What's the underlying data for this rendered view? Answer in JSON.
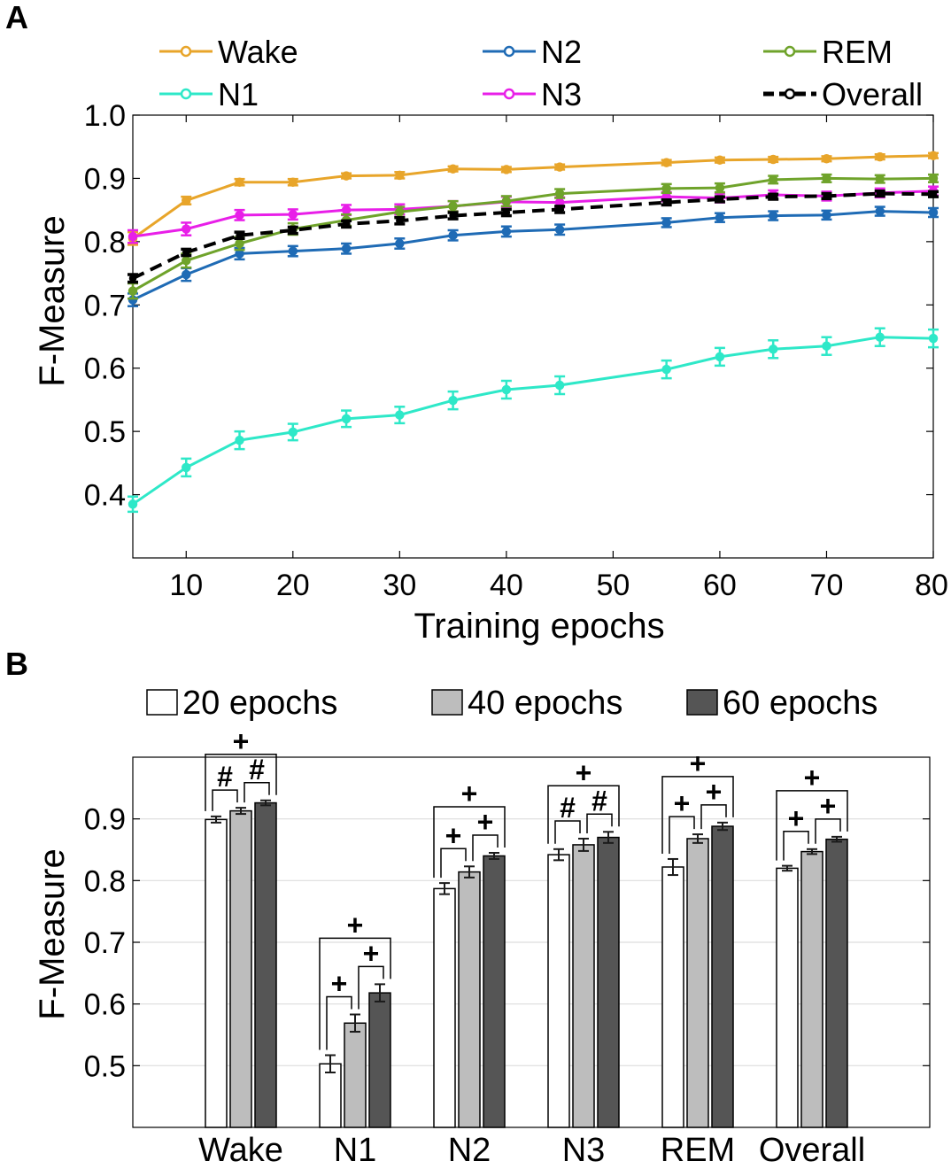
{
  "panel_labels": [
    "A",
    "B"
  ],
  "chart_data": [
    {
      "type": "line",
      "panel": "A",
      "title": "",
      "xlabel": "Training epochs",
      "ylabel": "F-Measure",
      "xlim": [
        5,
        80
      ],
      "ylim": [
        0.3,
        1.0
      ],
      "xticks": [
        10,
        20,
        30,
        40,
        50,
        60,
        70,
        80
      ],
      "yticks": [
        0.4,
        0.5,
        0.6,
        0.7,
        0.8,
        0.9,
        1.0
      ],
      "ytick_labels": [
        "0.4",
        "0.5",
        "0.6",
        "0.7",
        "0.8",
        "0.9",
        "1.0"
      ],
      "grid": false,
      "legend_position": "top",
      "x": [
        5,
        10,
        15,
        20,
        25,
        30,
        35,
        40,
        45,
        55,
        60,
        65,
        70,
        75,
        80
      ],
      "series": [
        {
          "name": "Wake",
          "color": "#E8A52A",
          "dashed": false,
          "values": [
            0.805,
            0.865,
            0.894,
            0.894,
            0.904,
            0.905,
            0.915,
            0.914,
            0.918,
            0.925,
            0.929,
            0.93,
            0.931,
            0.934,
            0.936
          ],
          "errors": [
            0.01,
            0.006,
            0.005,
            0.005,
            0.004,
            0.005,
            0.004,
            0.004,
            0.004,
            0.004,
            0.004,
            0.004,
            0.004,
            0.004,
            0.004
          ]
        },
        {
          "name": "N1",
          "color": "#2EE8C8",
          "dashed": false,
          "values": [
            0.385,
            0.443,
            0.486,
            0.499,
            0.52,
            0.526,
            0.549,
            0.566,
            0.573,
            0.598,
            0.618,
            0.63,
            0.635,
            0.649,
            0.647
          ],
          "errors": [
            0.012,
            0.014,
            0.014,
            0.013,
            0.013,
            0.013,
            0.014,
            0.014,
            0.014,
            0.014,
            0.014,
            0.014,
            0.014,
            0.014,
            0.014
          ]
        },
        {
          "name": "N2",
          "color": "#1F6BB5",
          "dashed": false,
          "values": [
            0.708,
            0.748,
            0.781,
            0.785,
            0.789,
            0.797,
            0.81,
            0.816,
            0.819,
            0.83,
            0.838,
            0.841,
            0.842,
            0.848,
            0.846
          ],
          "errors": [
            0.01,
            0.01,
            0.009,
            0.008,
            0.008,
            0.008,
            0.008,
            0.008,
            0.008,
            0.007,
            0.007,
            0.007,
            0.007,
            0.007,
            0.007
          ]
        },
        {
          "name": "N3",
          "color": "#E81FE8",
          "dashed": false,
          "values": [
            0.808,
            0.82,
            0.842,
            0.843,
            0.85,
            0.851,
            0.856,
            0.863,
            0.862,
            0.871,
            0.869,
            0.874,
            0.872,
            0.877,
            0.88
          ],
          "errors": [
            0.01,
            0.01,
            0.008,
            0.008,
            0.008,
            0.008,
            0.008,
            0.008,
            0.008,
            0.007,
            0.007,
            0.007,
            0.007,
            0.007,
            0.007
          ]
        },
        {
          "name": "REM",
          "color": "#6FA32B",
          "dashed": false,
          "values": [
            0.722,
            0.77,
            0.797,
            0.82,
            0.834,
            0.847,
            0.856,
            0.864,
            0.876,
            0.884,
            0.885,
            0.898,
            0.9,
            0.899,
            0.9
          ],
          "errors": [
            0.012,
            0.011,
            0.01,
            0.009,
            0.009,
            0.008,
            0.008,
            0.008,
            0.007,
            0.007,
            0.007,
            0.006,
            0.006,
            0.006,
            0.006
          ]
        },
        {
          "name": "Overall",
          "color": "#000000",
          "dashed": true,
          "values": [
            0.742,
            0.783,
            0.81,
            0.818,
            0.828,
            0.833,
            0.841,
            0.846,
            0.851,
            0.862,
            0.867,
            0.871,
            0.872,
            0.876,
            0.875
          ],
          "errors": [
            0.006,
            0.005,
            0.005,
            0.005,
            0.005,
            0.005,
            0.005,
            0.005,
            0.005,
            0.004,
            0.004,
            0.004,
            0.004,
            0.004,
            0.004
          ]
        }
      ]
    },
    {
      "type": "bar",
      "panel": "B",
      "title": "",
      "xlabel": "",
      "ylabel": "F-Measure",
      "ylim": [
        0.4,
        1.0
      ],
      "yticks": [
        0.5,
        0.6,
        0.7,
        0.8,
        0.9
      ],
      "ytick_labels": [
        "0.5",
        "0.6",
        "0.7",
        "0.8",
        "0.9"
      ],
      "grid": true,
      "legend_position": "top",
      "categories": [
        "Wake",
        "N1",
        "N2",
        "N3",
        "REM",
        "Overall"
      ],
      "series": [
        {
          "name": "20 epochs",
          "color": "#FFFFFF",
          "values": [
            0.899,
            0.503,
            0.787,
            0.842,
            0.822,
            0.82
          ],
          "errors": [
            0.005,
            0.014,
            0.009,
            0.009,
            0.013,
            0.004
          ]
        },
        {
          "name": "40 epochs",
          "color": "#BDBDBD",
          "values": [
            0.913,
            0.569,
            0.814,
            0.858,
            0.868,
            0.847
          ],
          "errors": [
            0.005,
            0.014,
            0.009,
            0.01,
            0.007,
            0.004
          ]
        },
        {
          "name": "60 epochs",
          "color": "#555555",
          "values": [
            0.926,
            0.618,
            0.84,
            0.87,
            0.888,
            0.867
          ],
          "errors": [
            0.004,
            0.014,
            0.005,
            0.009,
            0.006,
            0.004
          ]
        }
      ],
      "significance": [
        {
          "category": "Wake",
          "pair_12": "#",
          "pair_23": "#",
          "pair_13": "+"
        },
        {
          "category": "N1",
          "pair_12": "+",
          "pair_23": "+",
          "pair_13": "+"
        },
        {
          "category": "N2",
          "pair_12": "+",
          "pair_23": "+",
          "pair_13": "+"
        },
        {
          "category": "N3",
          "pair_12": "#",
          "pair_23": "#",
          "pair_13": "+"
        },
        {
          "category": "REM",
          "pair_12": "+",
          "pair_23": "+",
          "pair_13": "+"
        },
        {
          "category": "Overall",
          "pair_12": "+",
          "pair_23": "+",
          "pair_13": "+"
        }
      ]
    }
  ]
}
